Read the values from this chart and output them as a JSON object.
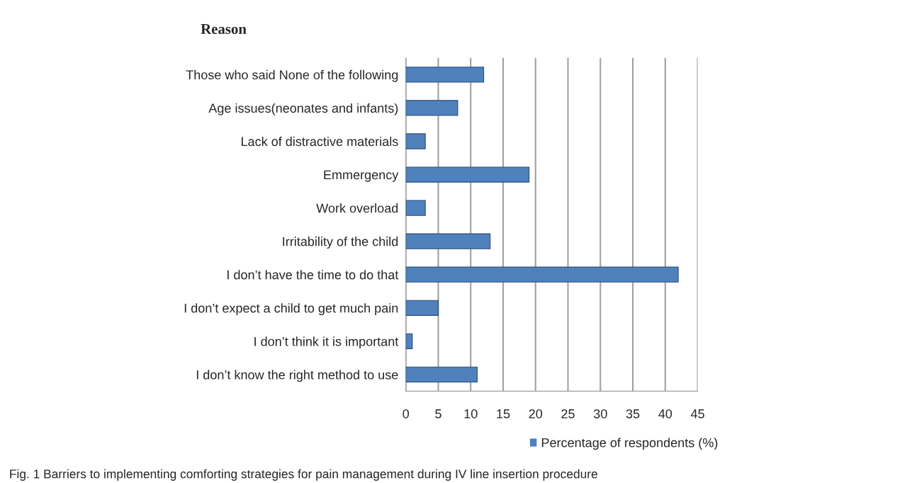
{
  "chart_data": {
    "type": "bar",
    "orientation": "horizontal",
    "title": "Reason",
    "categories": [
      "Those who said None of the following",
      "Age issues(neonates and infants)",
      "Lack of distractive materials",
      "Emmergency",
      "Work overload",
      "Irritability of the child",
      "I don’t have the time to do that",
      "I don’t expect a child to get much pain",
      "I don’t think it is important",
      "I don’t know the right method to use"
    ],
    "series": [
      {
        "name": "Percentage of respondents (%)",
        "color": "#4f81bd",
        "values": [
          12,
          8,
          3,
          19,
          3,
          13,
          42,
          5,
          1,
          11
        ]
      }
    ],
    "xlim": [
      0,
      45
    ],
    "xticks": [
      0,
      5,
      10,
      15,
      20,
      25,
      30,
      35,
      40,
      45
    ],
    "grid": "x",
    "legend": "bottom right",
    "annotations": [
      "Fig. 1 Barriers to implementing comforting strategies for pain management during IV line insertion procedure"
    ]
  }
}
